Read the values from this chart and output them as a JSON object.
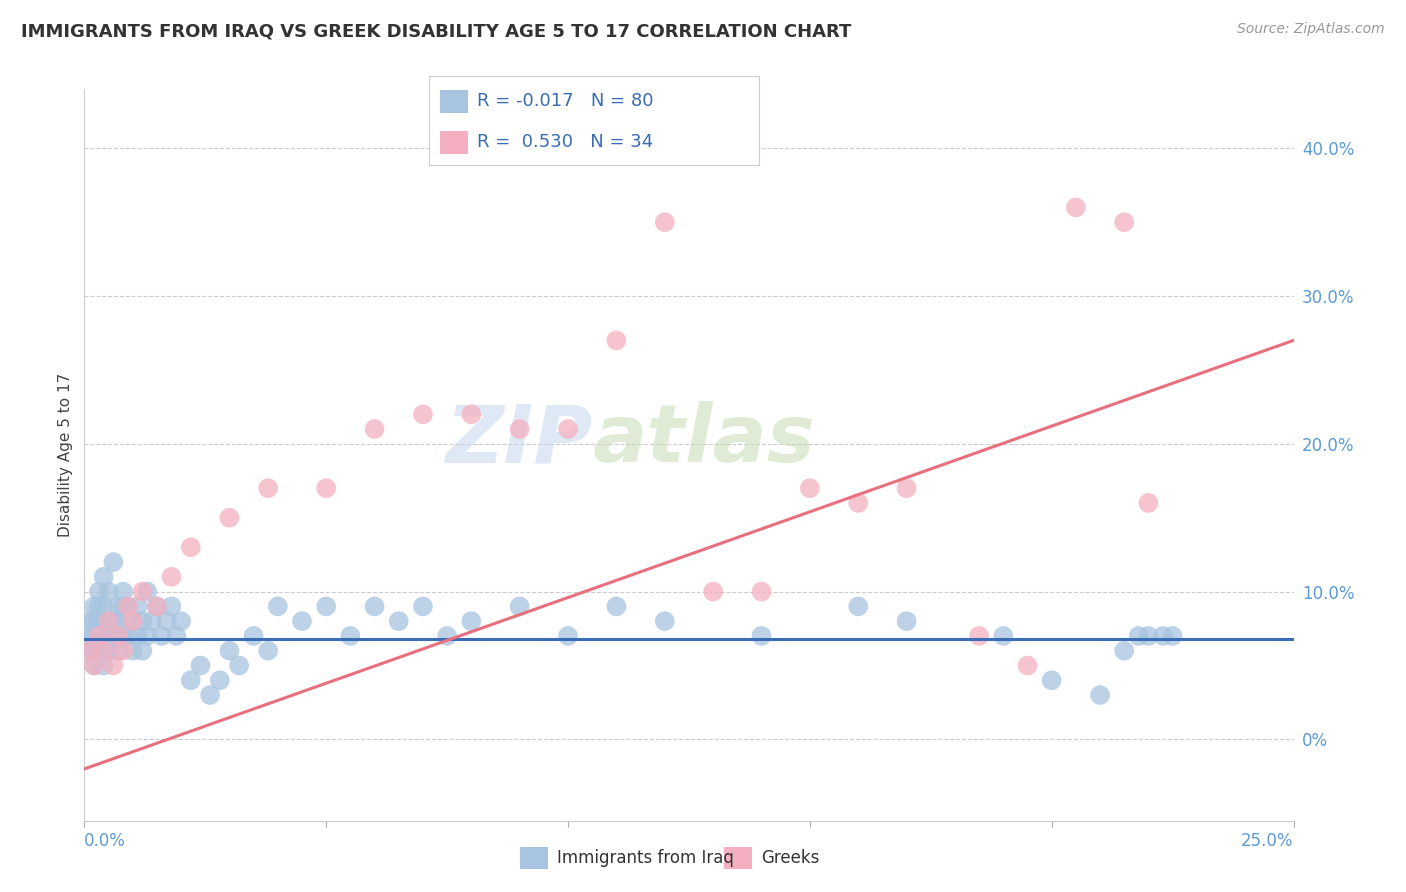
{
  "title": "IMMIGRANTS FROM IRAQ VS GREEK DISABILITY AGE 5 TO 17 CORRELATION CHART",
  "source": "Source: ZipAtlas.com",
  "ylabel": "Disability Age 5 to 17",
  "ylabel_right_ticks": [
    "0%",
    "10.0%",
    "20.0%",
    "30.0%",
    "40.0%"
  ],
  "ylabel_right_values": [
    0.0,
    0.1,
    0.2,
    0.3,
    0.4
  ],
  "xlim": [
    0.0,
    0.25
  ],
  "ylim": [
    -0.055,
    0.44
  ],
  "watermark_zip": "ZIP",
  "watermark_atlas": "atlas",
  "legend_iraq_label": "Immigrants from Iraq",
  "legend_greek_label": "Greeks",
  "R_iraq": -0.017,
  "N_iraq": 80,
  "R_greek": 0.53,
  "N_greek": 34,
  "blue_scatter_color": "#a8c4e0",
  "pink_scatter_color": "#f4b0c0",
  "blue_line_color": "#3a6db5",
  "pink_line_color": "#e8707e",
  "iraq_line_y0": 0.068,
  "iraq_line_y1": 0.068,
  "greek_line_y0": -0.02,
  "greek_line_y1": 0.27,
  "iraq_x": [
    0.001,
    0.001,
    0.001,
    0.002,
    0.002,
    0.002,
    0.002,
    0.002,
    0.003,
    0.003,
    0.003,
    0.003,
    0.003,
    0.004,
    0.004,
    0.004,
    0.004,
    0.004,
    0.005,
    0.005,
    0.005,
    0.005,
    0.006,
    0.006,
    0.006,
    0.007,
    0.007,
    0.007,
    0.008,
    0.008,
    0.008,
    0.009,
    0.009,
    0.01,
    0.01,
    0.011,
    0.011,
    0.012,
    0.012,
    0.013,
    0.013,
    0.014,
    0.015,
    0.016,
    0.017,
    0.018,
    0.019,
    0.02,
    0.022,
    0.024,
    0.026,
    0.028,
    0.03,
    0.032,
    0.035,
    0.038,
    0.04,
    0.045,
    0.05,
    0.055,
    0.06,
    0.065,
    0.07,
    0.075,
    0.08,
    0.09,
    0.1,
    0.11,
    0.12,
    0.14,
    0.16,
    0.17,
    0.19,
    0.2,
    0.21,
    0.215,
    0.218,
    0.22,
    0.223,
    0.225
  ],
  "iraq_y": [
    0.06,
    0.07,
    0.08,
    0.05,
    0.07,
    0.08,
    0.09,
    0.06,
    0.06,
    0.07,
    0.08,
    0.09,
    0.1,
    0.05,
    0.07,
    0.08,
    0.09,
    0.11,
    0.06,
    0.07,
    0.08,
    0.1,
    0.07,
    0.08,
    0.12,
    0.06,
    0.08,
    0.09,
    0.07,
    0.09,
    0.1,
    0.07,
    0.09,
    0.06,
    0.08,
    0.07,
    0.09,
    0.06,
    0.08,
    0.07,
    0.1,
    0.08,
    0.09,
    0.07,
    0.08,
    0.09,
    0.07,
    0.08,
    0.04,
    0.05,
    0.03,
    0.04,
    0.06,
    0.05,
    0.07,
    0.06,
    0.09,
    0.08,
    0.09,
    0.07,
    0.09,
    0.08,
    0.09,
    0.07,
    0.08,
    0.09,
    0.07,
    0.09,
    0.08,
    0.07,
    0.09,
    0.08,
    0.07,
    0.04,
    0.03,
    0.06,
    0.07,
    0.07,
    0.07,
    0.07
  ],
  "greek_x": [
    0.001,
    0.002,
    0.003,
    0.004,
    0.005,
    0.006,
    0.007,
    0.008,
    0.009,
    0.01,
    0.012,
    0.015,
    0.018,
    0.022,
    0.03,
    0.038,
    0.05,
    0.06,
    0.07,
    0.08,
    0.09,
    0.1,
    0.11,
    0.12,
    0.13,
    0.14,
    0.15,
    0.16,
    0.17,
    0.185,
    0.195,
    0.205,
    0.215,
    0.22
  ],
  "greek_y": [
    0.06,
    0.05,
    0.07,
    0.06,
    0.08,
    0.05,
    0.07,
    0.06,
    0.09,
    0.08,
    0.1,
    0.09,
    0.11,
    0.13,
    0.15,
    0.17,
    0.17,
    0.21,
    0.22,
    0.22,
    0.21,
    0.21,
    0.27,
    0.35,
    0.1,
    0.1,
    0.17,
    0.16,
    0.17,
    0.07,
    0.05,
    0.36,
    0.35,
    0.16
  ]
}
